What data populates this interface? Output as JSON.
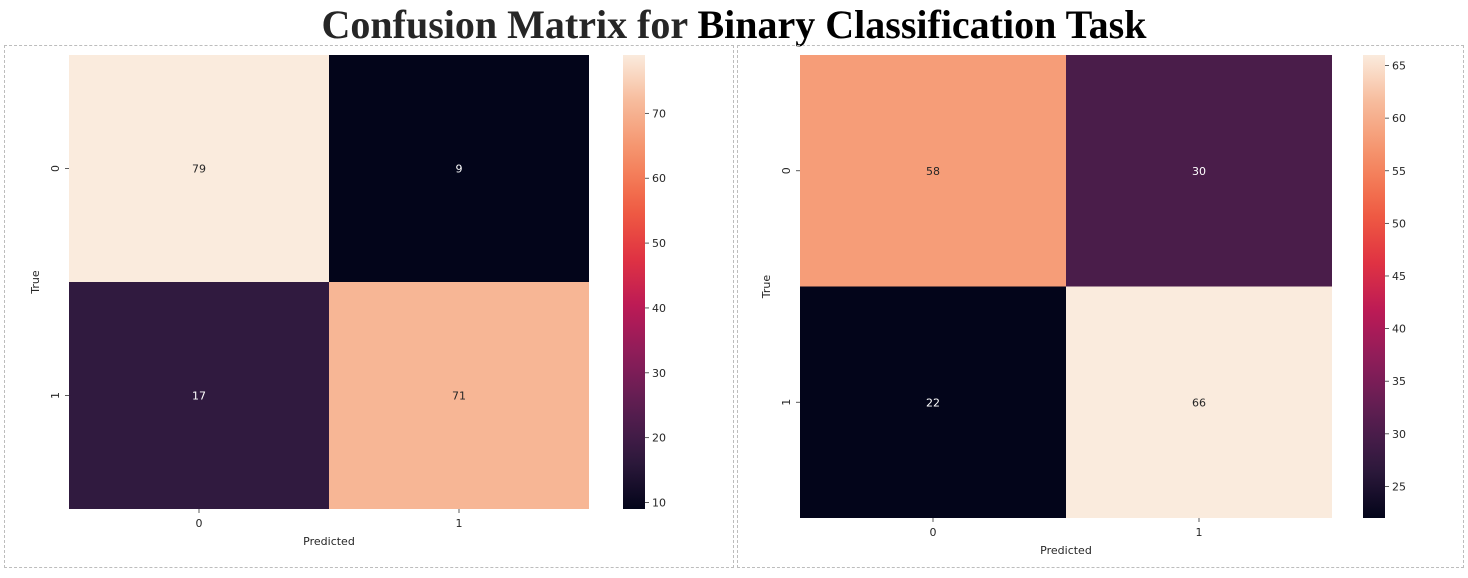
{
  "title": {
    "part1": "Confusion Matrix for",
    "part2": "Binary Classification Task"
  },
  "colormap": [
    "#03051a",
    "#2f1a3e",
    "#5a1e51",
    "#8a1d5a",
    "#bb1a56",
    "#e13342",
    "#f06043",
    "#f58e67",
    "#f7b796",
    "#faebdd"
  ],
  "chart_data": [
    {
      "type": "heatmap",
      "row_labels": [
        "0",
        "1"
      ],
      "col_labels": [
        "0",
        "1"
      ],
      "values": [
        [
          79,
          9
        ],
        [
          17,
          71
        ]
      ],
      "xlabel": "Predicted",
      "ylabel": "True",
      "colorbar": {
        "min": 9,
        "max": 79,
        "ticks": [
          10,
          20,
          30,
          40,
          50,
          60,
          70
        ]
      }
    },
    {
      "type": "heatmap",
      "row_labels": [
        "0",
        "1"
      ],
      "col_labels": [
        "0",
        "1"
      ],
      "values": [
        [
          58,
          30
        ],
        [
          22,
          66
        ]
      ],
      "xlabel": "Predicted",
      "ylabel": "True",
      "colorbar": {
        "min": 22,
        "max": 66,
        "ticks": [
          25,
          30,
          35,
          40,
          45,
          50,
          55,
          60,
          65
        ]
      }
    }
  ]
}
